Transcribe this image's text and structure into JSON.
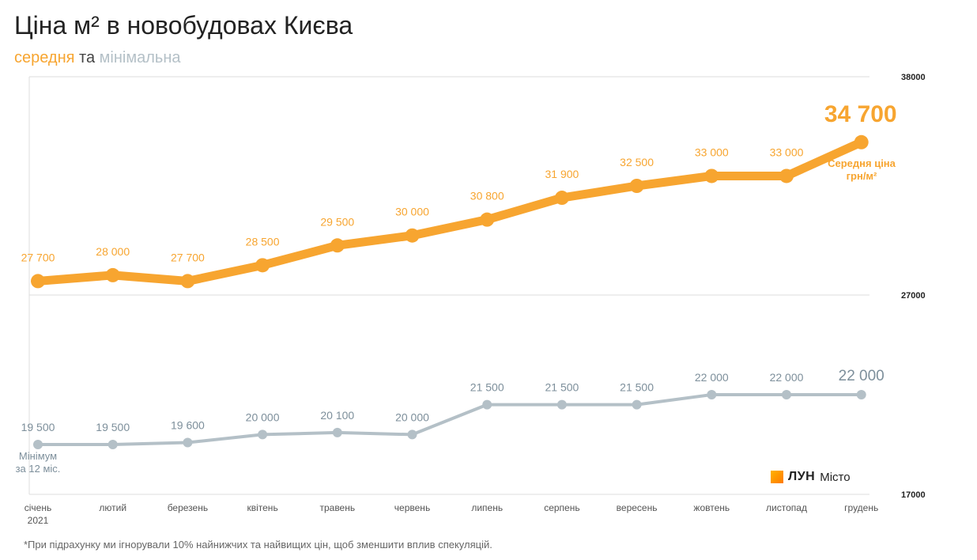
{
  "title": "Ціна м² в новобудовах Києва",
  "subtitle": {
    "avg": "середня",
    "and": "та",
    "min": "мінімальна"
  },
  "footnote": "*При підрахунку ми ігнорували 10% найнижчих та найвищих цін, щоб зменшити вплив спекуляцій.",
  "logo": {
    "mark": "ЛУН",
    "sub": "Місто"
  },
  "colors": {
    "avg": "#f7a530",
    "min": "#b4c0c7",
    "min_label": "#7d8f9b",
    "grid": "#dddddd"
  },
  "chart_data": {
    "type": "line",
    "categories": [
      "січень",
      "лютий",
      "березень",
      "квітень",
      "травень",
      "червень",
      "липень",
      "серпень",
      "вересень",
      "жовтень",
      "листопад",
      "грудень"
    ],
    "year_label": "2021",
    "y_ticks": [
      38000,
      27000,
      17000
    ],
    "y_tick_labels": [
      "38000",
      "27000",
      "17000"
    ],
    "series": [
      {
        "key": "avg",
        "values": [
          27700,
          28000,
          27700,
          28500,
          29500,
          30000,
          30800,
          31900,
          32500,
          33000,
          33000,
          34700
        ],
        "labels": [
          "27 700",
          "28 000",
          "27 700",
          "28 500",
          "29 500",
          "30 000",
          "30 800",
          "31 900",
          "32 500",
          "33 000",
          "33 000",
          "34 700"
        ],
        "end_note": [
          "Середня ціна",
          "грн/м²"
        ]
      },
      {
        "key": "min",
        "values": [
          19500,
          19500,
          19600,
          20000,
          20100,
          20000,
          21500,
          21500,
          21500,
          22000,
          22000,
          22000
        ],
        "labels": [
          "19 500",
          "19 500",
          "19 600",
          "20 000",
          "20 100",
          "20 000",
          "21 500",
          "21 500",
          "21 500",
          "22 000",
          "22 000",
          "22 000"
        ],
        "start_note": [
          "Мінімум",
          "за 12 міс."
        ]
      }
    ]
  }
}
